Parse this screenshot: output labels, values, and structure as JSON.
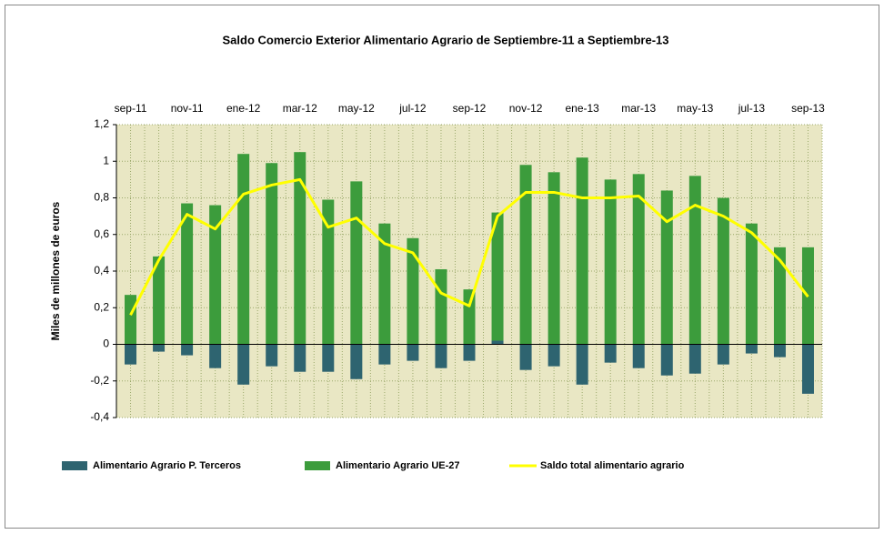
{
  "chart_data": {
    "type": "bar",
    "title": "Saldo Comercio Exterior Alimentario Agrario de Septiembre-11 a Septiembre-13",
    "y_label": "Miles de millones de euros",
    "categories": [
      "sep-11",
      null,
      "nov-11",
      null,
      "ene-12",
      null,
      "mar-12",
      null,
      "may-12",
      null,
      "jul-12",
      null,
      "sep-12",
      null,
      "nov-12",
      null,
      "ene-13",
      null,
      "mar-13",
      null,
      "may-13",
      null,
      "jul-13",
      null,
      "sep-13"
    ],
    "stacked": true,
    "series": [
      {
        "name": "Alimentario Agrario P. Terceros",
        "color": "#2e6470",
        "type": "bar",
        "values": [
          -0.11,
          -0.04,
          -0.06,
          -0.13,
          -0.22,
          -0.12,
          -0.15,
          -0.15,
          -0.19,
          -0.11,
          -0.09,
          -0.13,
          -0.09,
          0.02,
          -0.14,
          -0.12,
          -0.22,
          -0.1,
          -0.13,
          -0.17,
          -0.16,
          -0.11,
          -0.05,
          -0.07,
          -0.27
        ]
      },
      {
        "name": "Alimentario Agrario UE-27",
        "color": "#3c9c3c",
        "type": "bar",
        "values": [
          0.27,
          0.48,
          0.77,
          0.76,
          1.04,
          0.99,
          1.05,
          0.79,
          0.89,
          0.66,
          0.58,
          0.41,
          0.3,
          0.7,
          0.98,
          0.94,
          1.02,
          0.9,
          0.93,
          0.84,
          0.92,
          0.8,
          0.66,
          0.53,
          0.53
        ]
      },
      {
        "name": "Saldo total alimentario agrario",
        "color": "#ffff00",
        "type": "line",
        "values": [
          0.16,
          0.46,
          0.71,
          0.63,
          0.82,
          0.87,
          0.9,
          0.64,
          0.69,
          0.55,
          0.5,
          0.28,
          0.21,
          0.7,
          0.83,
          0.83,
          0.8,
          0.8,
          0.81,
          0.67,
          0.76,
          0.7,
          0.61,
          0.46,
          0.26
        ]
      }
    ],
    "ylim": [
      -0.4,
      1.2
    ],
    "yticks": [
      {
        "value": -0.4,
        "label": "-0,4"
      },
      {
        "value": -0.2,
        "label": "-0,2"
      },
      0,
      {
        "value": 0.2,
        "label": "0,2"
      },
      {
        "value": 0.4,
        "label": "0,4"
      },
      {
        "value": 0.6,
        "label": "0,6"
      },
      {
        "value": 0.8,
        "label": "0,8"
      },
      1,
      {
        "value": 1.2,
        "label": "1,2"
      }
    ],
    "grid": true,
    "legend": "bottom"
  }
}
